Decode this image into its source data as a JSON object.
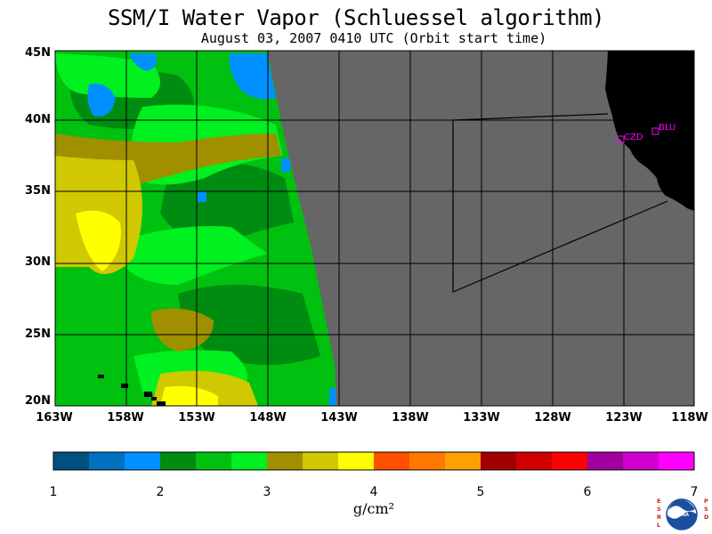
{
  "header": {
    "title": "SSM/I Water Vapor (Schluessel algorithm)",
    "subtitle": "August 03, 2007  0410 UTC  (Orbit start time)"
  },
  "map": {
    "latitude_labels": [
      "45N",
      "40N",
      "35N",
      "30N",
      "25N",
      "20N"
    ],
    "longitude_labels": [
      "163W",
      "158W",
      "153W",
      "148W",
      "143W",
      "138W",
      "133W",
      "128W",
      "123W",
      "118W"
    ],
    "lat_range": [
      20,
      45
    ],
    "lon_range": [
      -163,
      -118
    ],
    "station_labels": [
      "CZD",
      "BLU"
    ],
    "colors": {
      "no_data": "#666666",
      "land": "#000000",
      "grid": "#000000",
      "station": "#ff00ff"
    }
  },
  "colorbar": {
    "tick_labels": [
      "1",
      "2",
      "3",
      "4",
      "5",
      "6",
      "7"
    ],
    "units": "g/cm²",
    "colors": [
      "#005080",
      "#0070c0",
      "#0090ff",
      "#008c10",
      "#00c010",
      "#00f020",
      "#a09000",
      "#d0c800",
      "#ffff00",
      "#ff5000",
      "#ff7800",
      "#ffa000",
      "#a00000",
      "#d00000",
      "#ff0000",
      "#a000a0",
      "#d000d0",
      "#ff00ff"
    ]
  },
  "logo": {
    "left_text": "ESRL",
    "right_text": "PSD",
    "center_text": "NOAA"
  }
}
